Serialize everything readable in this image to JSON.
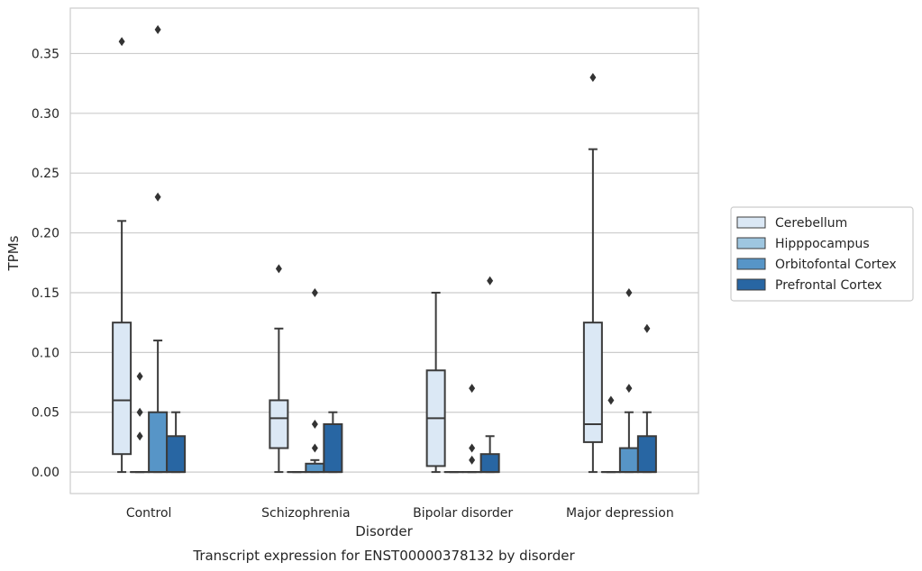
{
  "chart_data": {
    "type": "box",
    "title": "",
    "caption": "Transcript expression for ENST00000378132 by disorder",
    "xlabel": "Disorder",
    "ylabel": "TPMs",
    "ylim": [
      -0.018,
      0.388
    ],
    "yticks": [
      "0.00",
      "0.05",
      "0.10",
      "0.15",
      "0.20",
      "0.25",
      "0.30",
      "0.35"
    ],
    "grid": "horizontal",
    "legend_position": "right",
    "categories": [
      "Control",
      "Schizophrenia",
      "Bipolar disorder",
      "Major depression"
    ],
    "series": [
      {
        "name": "Cerebellum",
        "color": "#dbe8f5",
        "boxes": [
          {
            "whislo": 0.0,
            "q1": 0.015,
            "median": 0.06,
            "q3": 0.125,
            "whishi": 0.21,
            "fliers": [
              0.36
            ]
          },
          {
            "whislo": 0.0,
            "q1": 0.02,
            "median": 0.045,
            "q3": 0.06,
            "whishi": 0.12,
            "fliers": [
              0.17
            ]
          },
          {
            "whislo": 0.0,
            "q1": 0.005,
            "median": 0.045,
            "q3": 0.085,
            "whishi": 0.15,
            "fliers": []
          },
          {
            "whislo": 0.0,
            "q1": 0.025,
            "median": 0.04,
            "q3": 0.125,
            "whishi": 0.27,
            "fliers": [
              0.33
            ]
          }
        ]
      },
      {
        "name": "Hipppocampus",
        "color": "#9ec6e0",
        "boxes": [
          {
            "whislo": 0.0,
            "q1": 0.0,
            "median": 0.0,
            "q3": 0.0,
            "whishi": 0.0,
            "fliers": [
              0.08,
              0.05,
              0.03
            ]
          },
          {
            "whislo": 0.0,
            "q1": 0.0,
            "median": 0.0,
            "q3": 0.0,
            "whishi": 0.0,
            "fliers": []
          },
          {
            "whislo": 0.0,
            "q1": 0.0,
            "median": 0.0,
            "q3": 0.0,
            "whishi": 0.0,
            "fliers": []
          },
          {
            "whislo": 0.0,
            "q1": 0.0,
            "median": 0.0,
            "q3": 0.0,
            "whishi": 0.0,
            "fliers": [
              0.06
            ]
          }
        ]
      },
      {
        "name": "Orbitofontal Cortex",
        "color": "#5795c7",
        "boxes": [
          {
            "whislo": 0.0,
            "q1": 0.0,
            "median": 0.0,
            "q3": 0.05,
            "whishi": 0.11,
            "fliers": [
              0.37,
              0.23
            ]
          },
          {
            "whislo": 0.0,
            "q1": 0.0,
            "median": 0.0,
            "q3": 0.007,
            "whishi": 0.01,
            "fliers": [
              0.15,
              0.04,
              0.02
            ]
          },
          {
            "whislo": 0.0,
            "q1": 0.0,
            "median": 0.0,
            "q3": 0.0,
            "whishi": 0.0,
            "fliers": [
              0.07,
              0.02,
              0.01
            ]
          },
          {
            "whislo": 0.0,
            "q1": 0.0,
            "median": 0.0,
            "q3": 0.02,
            "whishi": 0.05,
            "fliers": [
              0.15,
              0.07
            ]
          }
        ]
      },
      {
        "name": "Prefrontal Cortex",
        "color": "#2866a3",
        "boxes": [
          {
            "whislo": 0.0,
            "q1": 0.0,
            "median": 0.0,
            "q3": 0.03,
            "whishi": 0.05,
            "fliers": []
          },
          {
            "whislo": 0.0,
            "q1": 0.0,
            "median": 0.0,
            "q3": 0.04,
            "whishi": 0.05,
            "fliers": []
          },
          {
            "whislo": 0.0,
            "q1": 0.0,
            "median": 0.0,
            "q3": 0.015,
            "whishi": 0.03,
            "fliers": [
              0.16
            ]
          },
          {
            "whislo": 0.0,
            "q1": 0.0,
            "median": 0.0,
            "q3": 0.03,
            "whishi": 0.05,
            "fliers": [
              0.12
            ]
          }
        ]
      }
    ]
  }
}
